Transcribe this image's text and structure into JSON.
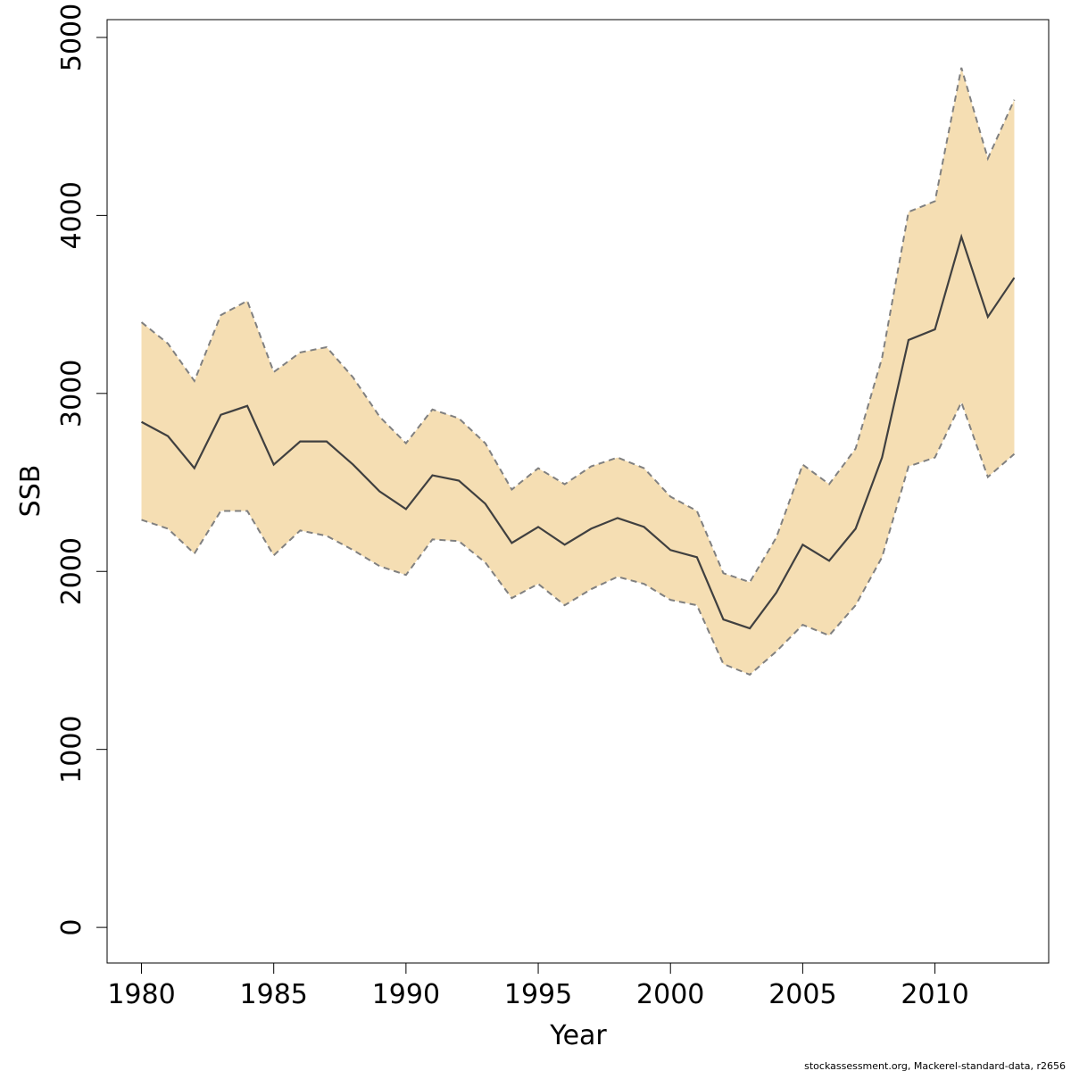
{
  "chart_data": {
    "type": "line",
    "xlabel": "Year",
    "ylabel": "SSB",
    "xlim": [
      1978.7,
      2014.3
    ],
    "ylim": [
      -200,
      5100
    ],
    "x_ticks": [
      1980,
      1985,
      1990,
      1995,
      2000,
      2005,
      2010
    ],
    "y_ticks": [
      0,
      1000,
      2000,
      3000,
      4000,
      5000
    ],
    "grid": false,
    "legend": "none",
    "colors": {
      "band": "#F5DEB3",
      "line": "#404040",
      "bound": "#808080",
      "frame": "#000000"
    },
    "x": [
      1980,
      1981,
      1982,
      1983,
      1984,
      1985,
      1986,
      1987,
      1988,
      1989,
      1990,
      1991,
      1992,
      1993,
      1994,
      1995,
      1996,
      1997,
      1998,
      1999,
      2000,
      2001,
      2002,
      2003,
      2004,
      2005,
      2006,
      2007,
      2008,
      2009,
      2010,
      2011,
      2012,
      2013
    ],
    "series": [
      {
        "role": "estimate",
        "values": [
          2840,
          2760,
          2580,
          2880,
          2930,
          2600,
          2730,
          2730,
          2600,
          2450,
          2350,
          2540,
          2510,
          2380,
          2160,
          2250,
          2150,
          2240,
          2300,
          2250,
          2120,
          2080,
          1730,
          1680,
          1880,
          2150,
          2060,
          2240,
          2640,
          3300,
          3360,
          3880,
          3430,
          3650
        ]
      },
      {
        "role": "upper",
        "values": [
          3400,
          3280,
          3070,
          3440,
          3520,
          3120,
          3230,
          3260,
          3090,
          2870,
          2720,
          2910,
          2860,
          2720,
          2460,
          2580,
          2490,
          2590,
          2640,
          2580,
          2420,
          2340,
          1990,
          1940,
          2190,
          2600,
          2490,
          2690,
          3200,
          4020,
          4080,
          4830,
          4320,
          4650
        ]
      },
      {
        "role": "lower",
        "values": [
          2290,
          2240,
          2100,
          2340,
          2340,
          2090,
          2230,
          2200,
          2120,
          2030,
          1980,
          2180,
          2170,
          2050,
          1850,
          1930,
          1810,
          1900,
          1970,
          1930,
          1840,
          1810,
          1480,
          1420,
          1550,
          1700,
          1640,
          1810,
          2080,
          2590,
          2640,
          2950,
          2530,
          2660
        ]
      }
    ]
  },
  "credit": "stockassessment.org, Mackerel-standard-data, r2656"
}
